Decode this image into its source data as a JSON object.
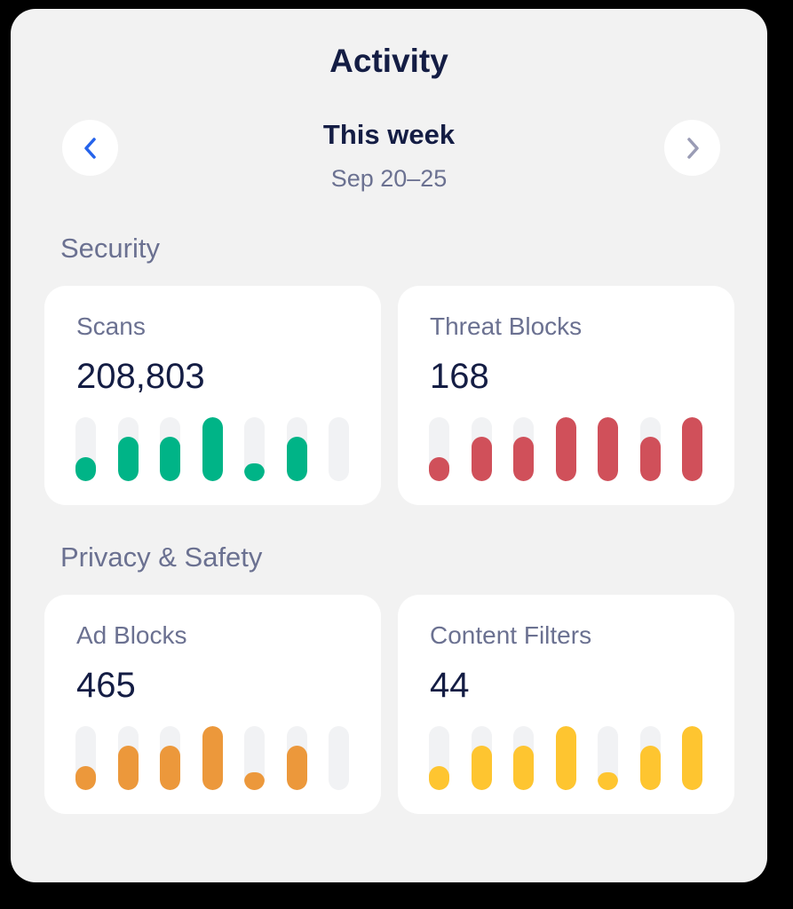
{
  "header": {
    "title": "Activity"
  },
  "period": {
    "label": "This week",
    "range": "Sep 20–25",
    "prev_icon": "chevron-left-icon",
    "next_icon": "chevron-right-icon"
  },
  "colors": {
    "green": "#00b487",
    "red": "#d0505a",
    "orange": "#ec983b",
    "yellow": "#fec530",
    "nav_active": "#2563eb",
    "nav_inactive": "#9a9cb5"
  },
  "sections": [
    {
      "title": "Security",
      "cards": [
        {
          "label": "Scans",
          "value": "208,803",
          "color": "#00b487",
          "bars": [
            38,
            70,
            70,
            100,
            28,
            70,
            0
          ]
        },
        {
          "label": "Threat Blocks",
          "value": "168",
          "color": "#d0505a",
          "bars": [
            38,
            70,
            70,
            100,
            100,
            70,
            100
          ]
        }
      ]
    },
    {
      "title": "Privacy & Safety",
      "cards": [
        {
          "label": "Ad Blocks",
          "value": "465",
          "color": "#ec983b",
          "bars": [
            38,
            70,
            70,
            100,
            28,
            70,
            0
          ]
        },
        {
          "label": "Content Filters",
          "value": "44",
          "color": "#fec530",
          "bars": [
            38,
            70,
            70,
            100,
            28,
            70,
            100
          ]
        }
      ]
    }
  ],
  "chart_data": [
    {
      "type": "bar",
      "title": "Scans",
      "categories": [
        "1",
        "2",
        "3",
        "4",
        "5",
        "6",
        "7"
      ],
      "values": [
        38,
        70,
        70,
        100,
        28,
        70,
        0
      ],
      "ylim": [
        0,
        100
      ]
    },
    {
      "type": "bar",
      "title": "Threat Blocks",
      "categories": [
        "1",
        "2",
        "3",
        "4",
        "5",
        "6",
        "7"
      ],
      "values": [
        38,
        70,
        70,
        100,
        100,
        70,
        100
      ],
      "ylim": [
        0,
        100
      ]
    },
    {
      "type": "bar",
      "title": "Ad Blocks",
      "categories": [
        "1",
        "2",
        "3",
        "4",
        "5",
        "6",
        "7"
      ],
      "values": [
        38,
        70,
        70,
        100,
        28,
        70,
        0
      ],
      "ylim": [
        0,
        100
      ]
    },
    {
      "type": "bar",
      "title": "Content Filters",
      "categories": [
        "1",
        "2",
        "3",
        "4",
        "5",
        "6",
        "7"
      ],
      "values": [
        38,
        70,
        70,
        100,
        28,
        70,
        100
      ],
      "ylim": [
        0,
        100
      ]
    }
  ]
}
